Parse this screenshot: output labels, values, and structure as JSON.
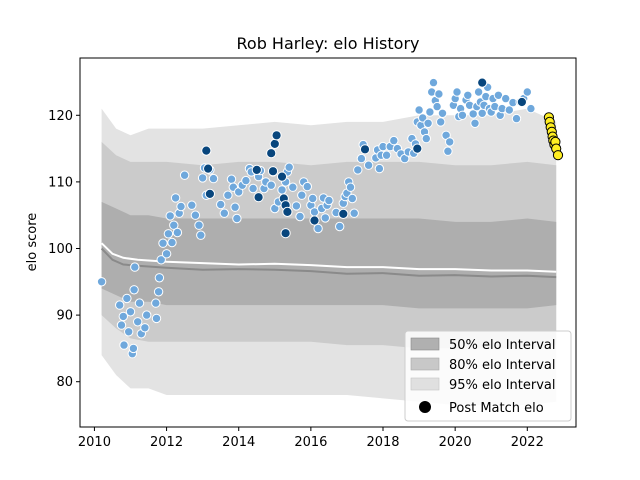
{
  "chart_data": {
    "type": "scatter",
    "title": "Rob Harley: elo History",
    "xlabel": "",
    "ylabel": "elo score",
    "xlim": [
      2009.6,
      2023.35
    ],
    "ylim": [
      73.2,
      128.6
    ],
    "x_ticks": [
      2010,
      2012,
      2014,
      2016,
      2018,
      2020,
      2022
    ],
    "y_ticks": [
      80,
      90,
      100,
      110,
      120
    ],
    "grid": false,
    "legend_position": "lower-right",
    "legend": [
      {
        "label": "50% elo Interval",
        "kind": "patch",
        "color": "#b0b0b0"
      },
      {
        "label": "80% elo Interval",
        "kind": "patch",
        "color": "#c8c8c8"
      },
      {
        "label": "95% elo Interval",
        "kind": "patch",
        "color": "#e0e0e0"
      },
      {
        "label": "Post Match elo",
        "kind": "marker",
        "color": "#000000"
      }
    ],
    "colors": {
      "band95": "#e3e3e3",
      "band80": "#cbcbcb",
      "band50": "#aeaeae",
      "median_line": "#ffffff",
      "grey_line": "#8a8a8a",
      "point_light": "#6fa8dc",
      "point_dark": "#08467d",
      "point_recent": "#ffee22"
    },
    "bands": {
      "x": [
        2010.2,
        2010.6,
        2011.0,
        2011.5,
        2012.0,
        2013.0,
        2014.0,
        2015.0,
        2016.0,
        2017.0,
        2018.0,
        2019.0,
        2020.0,
        2021.0,
        2022.0,
        2022.8
      ],
      "b95_low": [
        84,
        81,
        79,
        79,
        78,
        78,
        78,
        78,
        78,
        78,
        77.5,
        77,
        76.5,
        76.5,
        76.5,
        77
      ],
      "b95_high": [
        121,
        118,
        117,
        118,
        118,
        118,
        118.5,
        119,
        118.5,
        119,
        119,
        120,
        120,
        120,
        121,
        119
      ],
      "b80_low": [
        90,
        88,
        86.5,
        86,
        86,
        86,
        86,
        86,
        86,
        85.5,
        85.5,
        85,
        85,
        85,
        85,
        85.5
      ],
      "b80_high": [
        116,
        114,
        113,
        113,
        113,
        112.5,
        113,
        113,
        112.5,
        113,
        113,
        113,
        112.5,
        112.5,
        113,
        112.5
      ],
      "b50_low": [
        94,
        93,
        92,
        92,
        91.5,
        91.5,
        91.5,
        91.5,
        91.5,
        91.5,
        91.5,
        91,
        91,
        91,
        91,
        91.5
      ],
      "b50_high": [
        107,
        106,
        105,
        105,
        104.5,
        104.5,
        104.5,
        104.5,
        104.5,
        104.5,
        104.5,
        104.5,
        104,
        104,
        104.5,
        104
      ]
    },
    "median_line": {
      "x": [
        2010.2,
        2010.5,
        2010.8,
        2011.2,
        2012.0,
        2013.0,
        2014.0,
        2015.0,
        2016.0,
        2017.0,
        2018.0,
        2019.0,
        2020.0,
        2021.0,
        2022.0,
        2022.8
      ],
      "y": [
        100.8,
        99.2,
        98.6,
        98.3,
        98.0,
        97.8,
        97.6,
        97.7,
        97.5,
        97.2,
        97.2,
        96.9,
        96.9,
        96.7,
        96.7,
        96.5
      ]
    },
    "grey_line": {
      "x": [
        2010.2,
        2010.5,
        2010.8,
        2011.2,
        2012.0,
        2013.0,
        2014.0,
        2015.0,
        2016.0,
        2017.0,
        2018.0,
        2019.0,
        2020.0,
        2021.0,
        2022.0,
        2022.8
      ],
      "y": [
        100.0,
        98.3,
        97.6,
        97.4,
        97.1,
        96.8,
        96.9,
        96.8,
        96.6,
        96.2,
        96.3,
        95.9,
        96.0,
        95.8,
        95.9,
        95.7
      ]
    },
    "points_light": [
      [
        2010.2,
        95.0
      ],
      [
        2010.7,
        91.5
      ],
      [
        2010.75,
        88.5
      ],
      [
        2010.8,
        89.8
      ],
      [
        2010.82,
        85.5
      ],
      [
        2010.9,
        92.5
      ],
      [
        2010.95,
        87.5
      ],
      [
        2011.0,
        90.5
      ],
      [
        2011.05,
        84.2
      ],
      [
        2011.08,
        85.0
      ],
      [
        2011.1,
        93.8
      ],
      [
        2011.12,
        97.2
      ],
      [
        2011.2,
        89.0
      ],
      [
        2011.25,
        91.8
      ],
      [
        2011.3,
        87.2
      ],
      [
        2011.4,
        88.1
      ],
      [
        2011.45,
        90.0
      ],
      [
        2011.7,
        91.8
      ],
      [
        2011.72,
        89.5
      ],
      [
        2011.78,
        93.5
      ],
      [
        2011.8,
        95.6
      ],
      [
        2011.85,
        98.3
      ],
      [
        2011.9,
        100.8
      ],
      [
        2012.0,
        99.2
      ],
      [
        2012.05,
        102.2
      ],
      [
        2012.1,
        104.9
      ],
      [
        2012.15,
        100.9
      ],
      [
        2012.2,
        103.5
      ],
      [
        2012.25,
        107.6
      ],
      [
        2012.3,
        102.4
      ],
      [
        2012.35,
        105.3
      ],
      [
        2012.4,
        106.3
      ],
      [
        2012.5,
        111.0
      ],
      [
        2012.7,
        106.5
      ],
      [
        2012.8,
        105.0
      ],
      [
        2012.9,
        103.5
      ],
      [
        2012.95,
        102.0
      ],
      [
        2013.0,
        110.6
      ],
      [
        2013.05,
        112.1
      ],
      [
        2013.1,
        108.0
      ],
      [
        2013.2,
        111.8
      ],
      [
        2013.3,
        110.5
      ],
      [
        2013.5,
        106.6
      ],
      [
        2013.6,
        105.3
      ],
      [
        2013.7,
        108.0
      ],
      [
        2013.8,
        110.4
      ],
      [
        2013.85,
        109.2
      ],
      [
        2013.9,
        106.2
      ],
      [
        2013.95,
        104.5
      ],
      [
        2014.0,
        108.5
      ],
      [
        2014.1,
        109.5
      ],
      [
        2014.2,
        110.2
      ],
      [
        2014.3,
        112.0
      ],
      [
        2014.35,
        111.5
      ],
      [
        2014.4,
        109.0
      ],
      [
        2014.55,
        110.8
      ],
      [
        2014.6,
        111.7
      ],
      [
        2014.7,
        109.0
      ],
      [
        2014.75,
        110.0
      ],
      [
        2014.9,
        109.5
      ],
      [
        2014.95,
        111.5
      ],
      [
        2015.0,
        106.0
      ],
      [
        2015.1,
        107.0
      ],
      [
        2015.2,
        108.8
      ],
      [
        2015.3,
        110.0
      ],
      [
        2015.35,
        111.5
      ],
      [
        2015.4,
        112.2
      ],
      [
        2015.5,
        109.2
      ],
      [
        2015.6,
        106.4
      ],
      [
        2015.7,
        104.8
      ],
      [
        2015.75,
        108.0
      ],
      [
        2015.8,
        110.0
      ],
      [
        2015.9,
        109.3
      ],
      [
        2016.0,
        106.5
      ],
      [
        2016.05,
        107.5
      ],
      [
        2016.1,
        105.5
      ],
      [
        2016.2,
        103.0
      ],
      [
        2016.3,
        106.0
      ],
      [
        2016.35,
        107.6
      ],
      [
        2016.4,
        104.6
      ],
      [
        2016.45,
        106.5
      ],
      [
        2016.5,
        107.2
      ],
      [
        2016.7,
        105.4
      ],
      [
        2016.8,
        103.3
      ],
      [
        2016.9,
        106.8
      ],
      [
        2016.95,
        107.8
      ],
      [
        2017.0,
        108.3
      ],
      [
        2017.05,
        110.0
      ],
      [
        2017.1,
        109.2
      ],
      [
        2017.15,
        107.5
      ],
      [
        2017.2,
        105.3
      ],
      [
        2017.3,
        111.8
      ],
      [
        2017.4,
        113.5
      ],
      [
        2017.45,
        115.6
      ],
      [
        2017.6,
        112.5
      ],
      [
        2017.8,
        113.6
      ],
      [
        2017.85,
        114.8
      ],
      [
        2017.9,
        112.0
      ],
      [
        2017.95,
        114.0
      ],
      [
        2018.0,
        115.3
      ],
      [
        2018.1,
        114.0
      ],
      [
        2018.2,
        115.3
      ],
      [
        2018.3,
        116.2
      ],
      [
        2018.4,
        115.0
      ],
      [
        2018.5,
        114.2
      ],
      [
        2018.6,
        113.5
      ],
      [
        2018.7,
        114.5
      ],
      [
        2018.8,
        116.5
      ],
      [
        2018.85,
        114.3
      ],
      [
        2018.9,
        115.7
      ],
      [
        2018.95,
        119.0
      ],
      [
        2019.0,
        120.8
      ],
      [
        2019.05,
        118.5
      ],
      [
        2019.1,
        119.6
      ],
      [
        2019.15,
        117.5
      ],
      [
        2019.2,
        116.5
      ],
      [
        2019.25,
        118.8
      ],
      [
        2019.3,
        120.5
      ],
      [
        2019.35,
        123.5
      ],
      [
        2019.4,
        124.9
      ],
      [
        2019.45,
        122.2
      ],
      [
        2019.5,
        121.3
      ],
      [
        2019.55,
        123.2
      ],
      [
        2019.6,
        119.0
      ],
      [
        2019.65,
        120.3
      ],
      [
        2019.75,
        117.0
      ],
      [
        2019.8,
        114.6
      ],
      [
        2019.85,
        116.0
      ],
      [
        2019.95,
        121.5
      ],
      [
        2020.0,
        122.5
      ],
      [
        2020.05,
        123.5
      ],
      [
        2020.1,
        119.8
      ],
      [
        2020.15,
        121.0
      ],
      [
        2020.2,
        120.0
      ],
      [
        2020.3,
        122.3
      ],
      [
        2020.35,
        123.0
      ],
      [
        2020.4,
        121.5
      ],
      [
        2020.5,
        120.2
      ],
      [
        2020.55,
        118.8
      ],
      [
        2020.6,
        121.3
      ],
      [
        2020.65,
        123.5
      ],
      [
        2020.7,
        122.0
      ],
      [
        2020.75,
        120.3
      ],
      [
        2020.8,
        121.5
      ],
      [
        2020.85,
        122.8
      ],
      [
        2020.9,
        124.2
      ],
      [
        2020.95,
        121.0
      ],
      [
        2021.0,
        120.5
      ],
      [
        2021.05,
        122.5
      ],
      [
        2021.1,
        121.3
      ],
      [
        2021.2,
        123.0
      ],
      [
        2021.25,
        120.0
      ],
      [
        2021.3,
        121.0
      ],
      [
        2021.4,
        122.5
      ],
      [
        2021.5,
        120.8
      ],
      [
        2021.6,
        121.9
      ],
      [
        2021.7,
        119.5
      ],
      [
        2021.8,
        122.0
      ],
      [
        2021.9,
        122.5
      ],
      [
        2022.0,
        123.5
      ],
      [
        2022.1,
        121.0
      ]
    ],
    "points_dark": [
      [
        2013.1,
        114.7
      ],
      [
        2013.15,
        112.0
      ],
      [
        2013.2,
        108.2
      ],
      [
        2014.5,
        111.8
      ],
      [
        2014.55,
        107.7
      ],
      [
        2014.9,
        114.3
      ],
      [
        2014.95,
        111.6
      ],
      [
        2015.0,
        115.7
      ],
      [
        2015.05,
        117.0
      ],
      [
        2015.2,
        110.8
      ],
      [
        2015.25,
        107.5
      ],
      [
        2015.3,
        106.5
      ],
      [
        2015.35,
        105.5
      ],
      [
        2015.3,
        102.3
      ],
      [
        2016.1,
        104.2
      ],
      [
        2016.9,
        105.2
      ],
      [
        2017.5,
        114.9
      ],
      [
        2018.95,
        115.0
      ],
      [
        2020.75,
        124.9
      ],
      [
        2021.85,
        122.0
      ]
    ],
    "points_recent": [
      [
        2022.6,
        119.7
      ],
      [
        2022.62,
        119.0
      ],
      [
        2022.65,
        118.2
      ],
      [
        2022.68,
        117.5
      ],
      [
        2022.7,
        116.8
      ],
      [
        2022.72,
        116.2
      ],
      [
        2022.75,
        115.6
      ],
      [
        2022.78,
        116.0
      ],
      [
        2022.8,
        115.0
      ],
      [
        2022.85,
        114.0
      ]
    ]
  }
}
